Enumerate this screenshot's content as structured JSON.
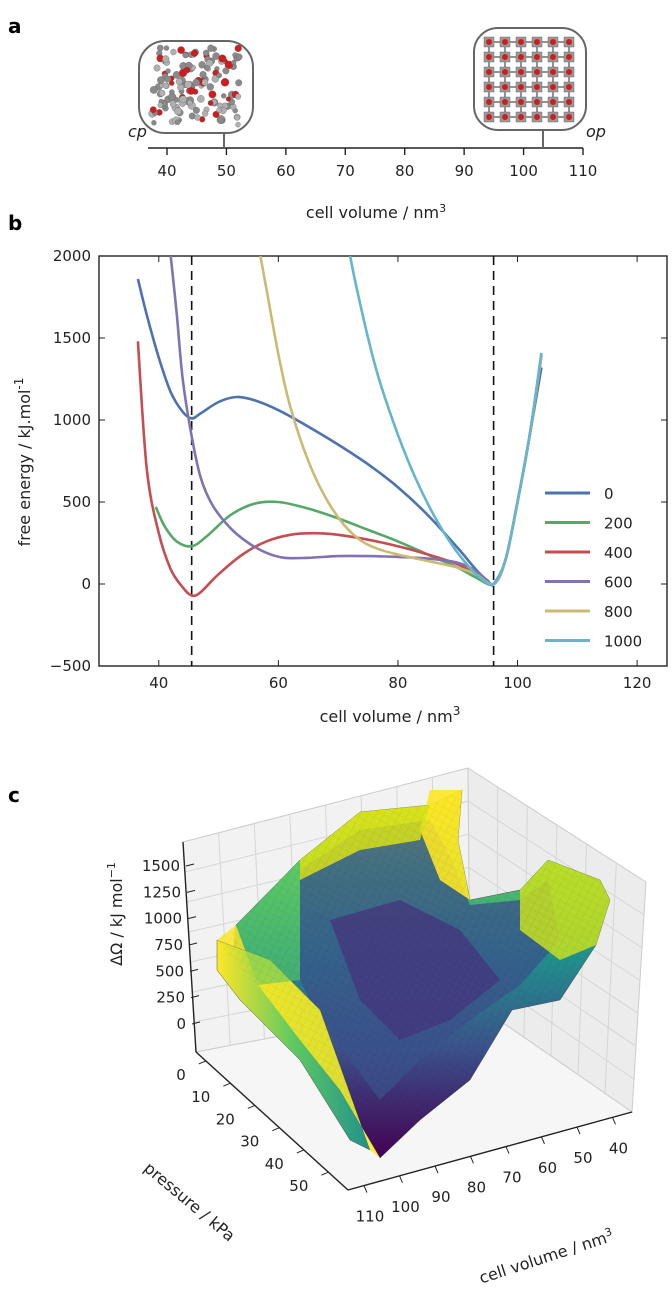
{
  "panels": {
    "a": "a",
    "b": "b",
    "c": "c"
  },
  "colors": {
    "0": "#4c72b0",
    "200": "#55a868",
    "400": "#c44e52",
    "600": "#8172b2",
    "800": "#ccb974",
    "1000": "#64b5cd"
  },
  "chart_data": [
    {
      "type": "line",
      "panel": "a",
      "xlabel": "cell volume / nm",
      "xlabel_sup": "3",
      "xlim": [
        40,
        110
      ],
      "xticks": [
        40,
        50,
        60,
        70,
        80,
        90,
        100,
        110
      ],
      "annotations": [
        {
          "text": "cp",
          "volume": 50
        },
        {
          "text": "op",
          "volume": 103
        }
      ]
    },
    {
      "type": "line",
      "panel": "b",
      "xlabel": "cell volume / nm",
      "xlabel_sup": "3",
      "ylabel": "free energy / kJ.mol",
      "ylabel_sup": "-1",
      "xlim": [
        30,
        125
      ],
      "ylim": [
        -500,
        2000
      ],
      "xticks": [
        40,
        60,
        80,
        100,
        120
      ],
      "yticks": [
        -500,
        0,
        500,
        1000,
        1500,
        2000
      ],
      "vlines": [
        45.5,
        96
      ],
      "legend_position": "right",
      "series": [
        {
          "name": "0",
          "color": "#4c72b0",
          "x": [
            36.5,
            38,
            40,
            42,
            44,
            45.5,
            47,
            50,
            53,
            56,
            60,
            65,
            70,
            75,
            80,
            85,
            90,
            93,
            95,
            96,
            98,
            100,
            102,
            104
          ],
          "y": [
            1860,
            1640,
            1380,
            1170,
            1050,
            1010,
            1040,
            1110,
            1140,
            1120,
            1060,
            960,
            850,
            730,
            590,
            420,
            220,
            90,
            20,
            0,
            150,
            500,
            900,
            1320
          ]
        },
        {
          "name": "200",
          "color": "#55a868",
          "x": [
            39.5,
            41,
            43,
            45.5,
            48,
            52,
            56,
            60,
            65,
            70,
            75,
            80,
            85,
            90,
            93,
            96,
            98,
            100,
            102,
            104
          ],
          "y": [
            470,
            350,
            260,
            230,
            290,
            420,
            490,
            500,
            460,
            400,
            330,
            260,
            180,
            100,
            40,
            0,
            150,
            500,
            900,
            1400
          ]
        },
        {
          "name": "400",
          "color": "#c44e52",
          "x": [
            36.5,
            38,
            40,
            42,
            44,
            45.5,
            47,
            50,
            54,
            58,
            62,
            66,
            70,
            75,
            80,
            85,
            90,
            93,
            96,
            98,
            100,
            102,
            104
          ],
          "y": [
            1480,
            700,
            310,
            90,
            -20,
            -70,
            -50,
            60,
            180,
            260,
            300,
            310,
            300,
            270,
            230,
            180,
            120,
            60,
            0,
            150,
            500,
            900,
            1390
          ]
        },
        {
          "name": "600",
          "color": "#8172b2",
          "x": [
            42,
            43,
            44,
            45.5,
            47,
            49,
            52,
            55,
            58,
            61,
            65,
            70,
            75,
            80,
            85,
            90,
            93,
            96,
            98,
            100,
            102,
            104
          ],
          "y": [
            2000,
            1650,
            1250,
            900,
            650,
            480,
            340,
            250,
            190,
            160,
            160,
            170,
            170,
            165,
            155,
            130,
            80,
            0,
            150,
            500,
            900,
            1390
          ]
        },
        {
          "name": "800",
          "color": "#ccb974",
          "x": [
            57,
            58,
            60,
            62,
            65,
            68,
            71,
            74,
            77,
            80,
            85,
            90,
            93,
            96,
            98,
            100,
            102,
            104
          ],
          "y": [
            2000,
            1800,
            1400,
            1080,
            750,
            520,
            360,
            260,
            210,
            180,
            140,
            100,
            60,
            0,
            150,
            500,
            900,
            1390
          ]
        },
        {
          "name": "1000",
          "color": "#64b5cd",
          "x": [
            72,
            73,
            75,
            77,
            80,
            83,
            86,
            89,
            92,
            94,
            96,
            98,
            100,
            102,
            104
          ],
          "y": [
            2000,
            1820,
            1500,
            1230,
            910,
            640,
            420,
            240,
            100,
            30,
            0,
            150,
            500,
            900,
            1410
          ]
        }
      ]
    },
    {
      "type": "area",
      "panel": "c",
      "zlabel": "ΔΩ / kJ mol",
      "zlabel_sup": "−1",
      "xlabel": "cell volume / nm",
      "xlabel_sup": "3",
      "ylabel": "pressure / kPa",
      "zticks": [
        "1500",
        "1250",
        "1000",
        "750",
        "500",
        "250",
        "0"
      ],
      "pressure_ticks": [
        "0",
        "10",
        "20",
        "30",
        "40",
        "50"
      ],
      "volume_ticks": [
        "40",
        "50",
        "60",
        "70",
        "80",
        "90",
        "100",
        "110"
      ],
      "colormap": [
        "#440154",
        "#3b528b",
        "#21918c",
        "#5ec962",
        "#fde725"
      ]
    }
  ]
}
